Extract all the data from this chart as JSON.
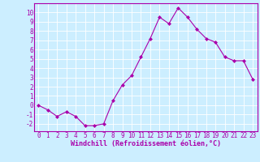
{
  "x": [
    0,
    1,
    2,
    3,
    4,
    5,
    6,
    7,
    8,
    9,
    10,
    11,
    12,
    13,
    14,
    15,
    16,
    17,
    18,
    19,
    20,
    21,
    22,
    23
  ],
  "y": [
    0,
    -0.5,
    -1.2,
    -0.7,
    -1.2,
    -2.2,
    -2.2,
    -2.0,
    0.5,
    2.2,
    3.2,
    5.2,
    7.2,
    9.5,
    8.8,
    10.5,
    9.5,
    8.2,
    7.2,
    6.8,
    5.2,
    4.8,
    4.8,
    2.8
  ],
  "line_color": "#aa00aa",
  "marker": "D",
  "marker_size": 2,
  "bg_color": "#cceeff",
  "grid_color": "#ffffff",
  "xlabel": "Windchill (Refroidissement éolien,°C)",
  "xlabel_color": "#aa00aa",
  "tick_color": "#aa00aa",
  "spine_color": "#aa00aa",
  "ylim": [
    -2.8,
    11
  ],
  "xlim": [
    -0.5,
    23.5
  ],
  "yticks": [
    -2,
    -1,
    0,
    1,
    2,
    3,
    4,
    5,
    6,
    7,
    8,
    9,
    10
  ],
  "xticks": [
    0,
    1,
    2,
    3,
    4,
    5,
    6,
    7,
    8,
    9,
    10,
    11,
    12,
    13,
    14,
    15,
    16,
    17,
    18,
    19,
    20,
    21,
    22,
    23
  ],
  "tick_fontsize": 5.5,
  "xlabel_fontsize": 6.0
}
